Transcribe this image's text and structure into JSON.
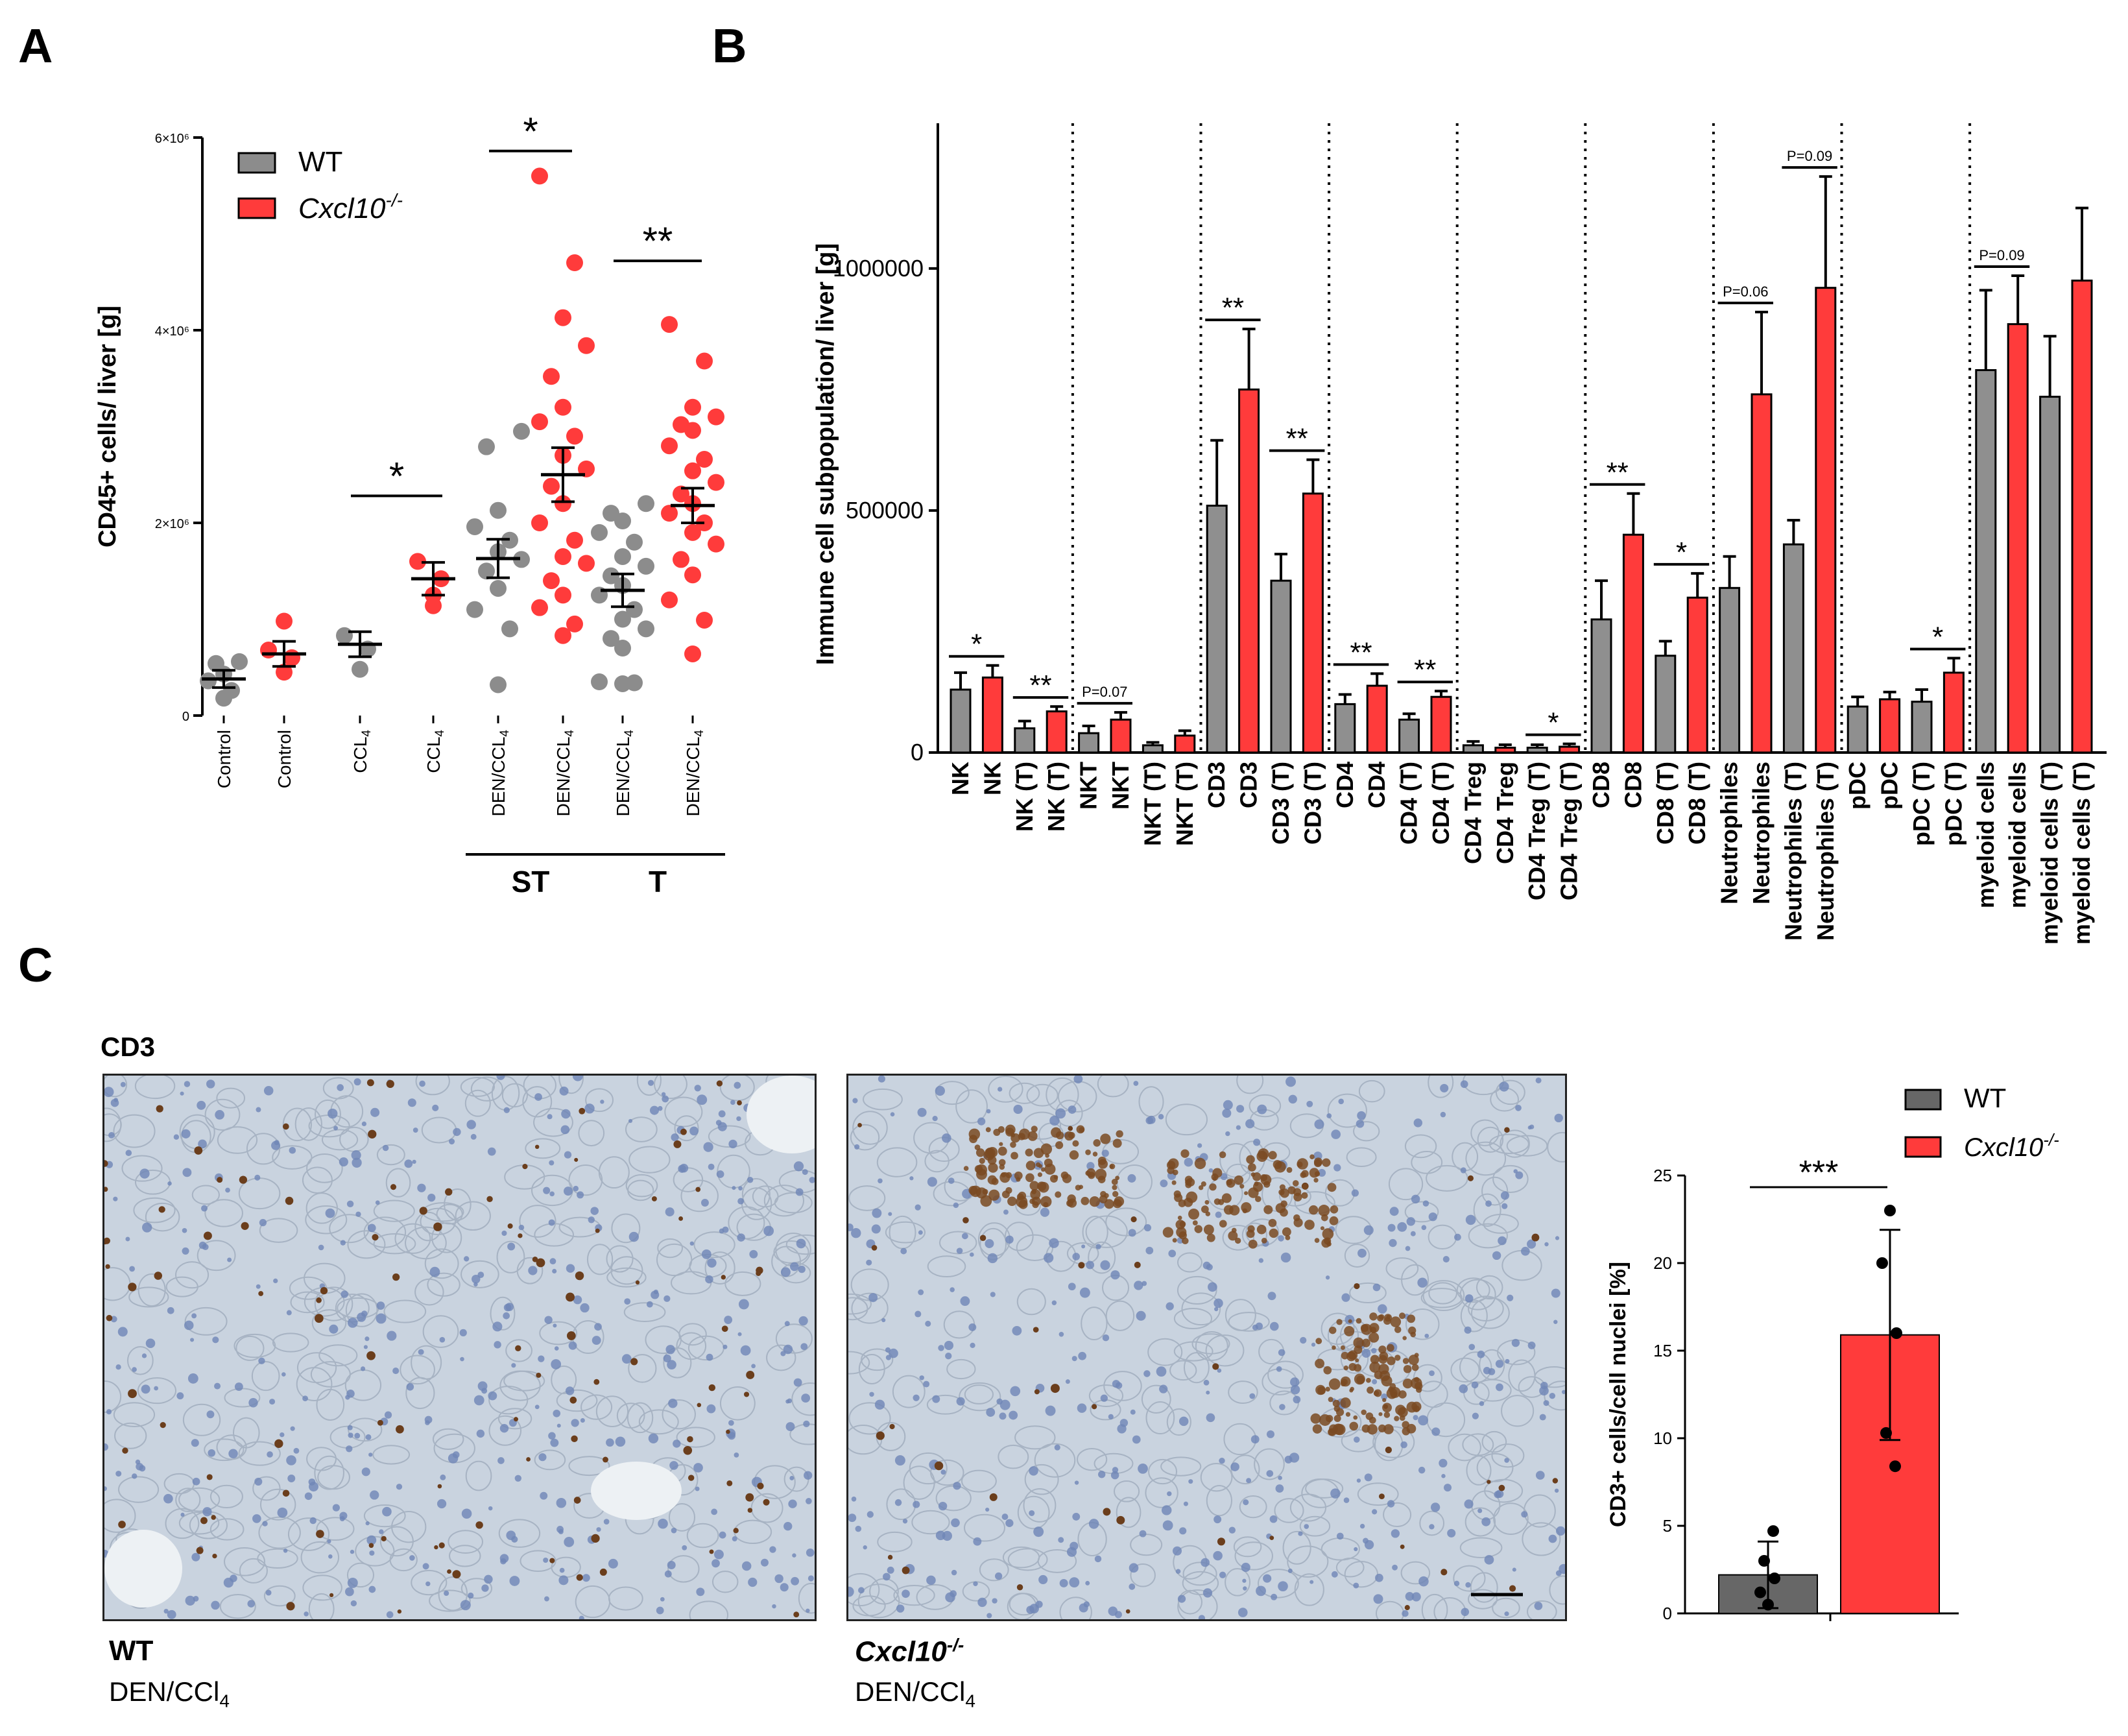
{
  "panels": {
    "a": "A",
    "b": "B",
    "c": "C"
  },
  "colors": {
    "wt": "#8c8c8c",
    "ko": "#ff3b3b",
    "wt_bar_b": "#8f8f8f",
    "wt_bar_c": "#676767",
    "ko_bar": "#ff3b3b"
  },
  "chart_data": [
    {
      "id": "A",
      "type": "scatter",
      "ylabel": "CD45+ cells/ liver [g]",
      "ylim": [
        0,
        6000000
      ],
      "yticks": [
        {
          "value": 0,
          "label": "0"
        },
        {
          "value": 2000000,
          "label": "2×10⁶"
        },
        {
          "value": 4000000,
          "label": "4×10⁶"
        },
        {
          "value": 6000000,
          "label": "6×10⁶"
        }
      ],
      "legend": {
        "wt": "WT",
        "ko": "Cxcl10",
        "ko_sup": "-/-",
        "placement": "top-left"
      },
      "groups": [
        {
          "label": "Control",
          "geno": "wt",
          "mean": 380000,
          "sem": 90000,
          "points": [
            180000,
            260000,
            360000,
            430000,
            540000,
            560000
          ]
        },
        {
          "label": "Control",
          "geno": "ko",
          "mean": 640000,
          "sem": 130000,
          "points": [
            450000,
            600000,
            680000,
            980000
          ]
        },
        {
          "label": "CCL",
          "sub": "4",
          "geno": "wt",
          "mean": 740000,
          "sem": 130000,
          "points": [
            480000,
            690000,
            830000
          ]
        },
        {
          "label": "CCL",
          "sub": "4",
          "geno": "ko",
          "mean": 1420000,
          "sem": 170000,
          "points": [
            1250000,
            1420000,
            1600000,
            1140000
          ]
        },
        {
          "label": "DEN/CCL",
          "sub": "4",
          "geno": "wt",
          "mean": 1630000,
          "sem": 200000,
          "points": [
            320000,
            900000,
            1100000,
            1320000,
            1500000,
            1620000,
            1700000,
            1820000,
            1960000,
            2130000,
            2790000,
            2950000
          ]
        },
        {
          "label": "DEN/CCL",
          "sub": "4",
          "geno": "ko",
          "mean": 2500000,
          "sem": 280000,
          "points": [
            830000,
            950000,
            1120000,
            1250000,
            1400000,
            1580000,
            1650000,
            1820000,
            2000000,
            2200000,
            2380000,
            2560000,
            2700000,
            2900000,
            3050000,
            3200000,
            3520000,
            3840000,
            4130000,
            4700000,
            5600000
          ]
        },
        {
          "label": "DEN/CCL",
          "sub": "4",
          "geno": "wt",
          "mean": 1300000,
          "sem": 170000,
          "points": [
            330000,
            340000,
            350000,
            700000,
            800000,
            900000,
            1000000,
            1100000,
            1250000,
            1350000,
            1450000,
            1550000,
            1650000,
            1800000,
            1900000,
            2020000,
            2100000,
            2200000
          ]
        },
        {
          "label": "DEN/CCL",
          "sub": "4",
          "geno": "ko",
          "mean": 2180000,
          "sem": 180000,
          "points": [
            640000,
            990000,
            1200000,
            1460000,
            1620000,
            1780000,
            1900000,
            2000000,
            2100000,
            2200000,
            2300000,
            2420000,
            2540000,
            2660000,
            2800000,
            2960000,
            3020000,
            3100000,
            3200000,
            3680000,
            4060000
          ]
        }
      ],
      "significance": [
        {
          "between": [
            2,
            3
          ],
          "label": "*"
        },
        {
          "between": [
            4,
            5
          ],
          "label": "*"
        },
        {
          "between": [
            6,
            7
          ],
          "label": "**"
        }
      ],
      "brackets": [
        {
          "between": [
            4,
            5
          ],
          "label": "ST"
        },
        {
          "between": [
            6,
            7
          ],
          "label": "T"
        }
      ]
    },
    {
      "id": "B",
      "type": "bar",
      "ylabel": "Immune cell subpopulation/ liver [g]",
      "ylim": [
        0,
        1300000
      ],
      "yticks": [
        {
          "value": 0,
          "label": "0"
        },
        {
          "value": 500000,
          "label": "500000"
        },
        {
          "value": 1000000,
          "label": "1000000"
        }
      ],
      "categories": [
        "NK",
        "NK",
        "NK (T)",
        "NK (T)",
        "NKT",
        "NKT",
        "NKT (T)",
        "NKT (T)",
        "CD3",
        "CD3",
        "CD3 (T)",
        "CD3 (T)",
        "CD4",
        "CD4",
        "CD4 (T)",
        "CD4 (T)",
        "CD4 Treg",
        "CD4 Treg",
        "CD4 Treg  (T)",
        "CD4 Treg  (T)",
        "CD8",
        "CD8",
        "CD8 (T)",
        "CD8 (T)",
        "Neutrophiles",
        "Neutrophiles",
        "Neutrophiles (T)",
        "Neutrophiles (T)",
        "pDC",
        "pDC",
        "pDC (T)",
        "pDC (T)",
        "myeloid cells",
        "myeloid cells",
        "myeloid cells (T)",
        "myeloid cells (T)"
      ],
      "values": [
        130000,
        155000,
        50000,
        85000,
        40000,
        68000,
        15000,
        35000,
        510000,
        750000,
        355000,
        535000,
        100000,
        138000,
        68000,
        115000,
        15000,
        10000,
        10000,
        12000,
        275000,
        450000,
        200000,
        320000,
        340000,
        740000,
        430000,
        960000,
        95000,
        110000,
        105000,
        165000,
        790000,
        885000,
        735000,
        975000
      ],
      "errors": [
        35000,
        25000,
        15000,
        10000,
        15000,
        15000,
        6000,
        10000,
        135000,
        125000,
        55000,
        70000,
        20000,
        25000,
        12000,
        12000,
        8000,
        6000,
        6000,
        6000,
        80000,
        85000,
        30000,
        50000,
        65000,
        170000,
        50000,
        230000,
        20000,
        15000,
        25000,
        30000,
        165000,
        100000,
        125000,
        150000
      ],
      "genotype_pattern": [
        "wt",
        "ko"
      ],
      "separators_after": [
        3,
        7,
        11,
        15,
        19,
        23,
        27,
        31
      ],
      "significance": [
        {
          "pair": [
            0,
            1
          ],
          "label": "*"
        },
        {
          "pair": [
            2,
            3
          ],
          "label": "**"
        },
        {
          "pair": [
            4,
            5
          ],
          "label": "P=0.07"
        },
        {
          "pair": [
            8,
            9
          ],
          "label": "**"
        },
        {
          "pair": [
            10,
            11
          ],
          "label": "**"
        },
        {
          "pair": [
            12,
            13
          ],
          "label": "**"
        },
        {
          "pair": [
            14,
            15
          ],
          "label": "**"
        },
        {
          "pair": [
            18,
            19
          ],
          "label": "*"
        },
        {
          "pair": [
            20,
            21
          ],
          "label": "**"
        },
        {
          "pair": [
            22,
            23
          ],
          "label": "*"
        },
        {
          "pair": [
            24,
            25
          ],
          "label": "P=0.06"
        },
        {
          "pair": [
            26,
            27
          ],
          "label": "P=0.09"
        },
        {
          "pair": [
            30,
            31
          ],
          "label": "*"
        },
        {
          "pair": [
            32,
            33
          ],
          "label": "P=0.09"
        }
      ]
    },
    {
      "id": "C",
      "type": "bar",
      "ylabel": "CD3+ cells/cell nuclei [%]",
      "ylim": [
        0,
        25
      ],
      "yticks": [
        {
          "value": 0,
          "label": "0"
        },
        {
          "value": 5,
          "label": "5"
        },
        {
          "value": 10,
          "label": "10"
        },
        {
          "value": 15,
          "label": "15"
        },
        {
          "value": 20,
          "label": "20"
        },
        {
          "value": 25,
          "label": "25"
        }
      ],
      "legend": {
        "wt": "WT",
        "ko": "Cxcl10",
        "ko_sup": "-/-",
        "placement": "top-right"
      },
      "bars": [
        {
          "geno": "wt",
          "value": 2.2,
          "sd": 1.9,
          "points": [
            0.5,
            1.2,
            2.0,
            3.0,
            4.7
          ]
        },
        {
          "geno": "ko",
          "value": 15.9,
          "sd": 6.0,
          "points": [
            23.0,
            20.0,
            16.0,
            10.3,
            8.4
          ]
        }
      ],
      "significance": {
        "label": "***"
      }
    }
  ],
  "micro": {
    "title": "CD3",
    "wt": {
      "name": "WT",
      "treat": "DEN/CCl",
      "treat_sub": "4"
    },
    "ko": {
      "name": "Cxcl10",
      "sup": "-/-",
      "treat": "DEN/CCl",
      "treat_sub": "4"
    }
  }
}
